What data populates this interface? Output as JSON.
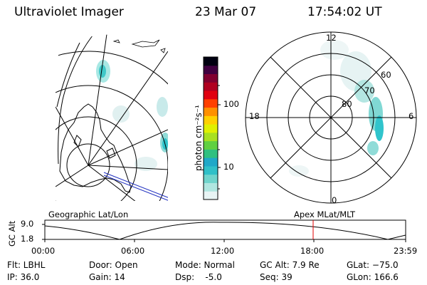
{
  "header": {
    "instrument": "Ultraviolet Imager",
    "date": "23 Mar 07",
    "time": "17:54:02 UT"
  },
  "colorbar": {
    "label": "photon cm⁻²s⁻¹",
    "ticks": [
      "100",
      "10"
    ],
    "colors": [
      "#e8f4f4",
      "#b0e6e0",
      "#70d4cc",
      "#30c0c8",
      "#20a8c8",
      "#30c080",
      "#60d040",
      "#a8e020",
      "#e0f000",
      "#ffd000",
      "#ff9000",
      "#ff4000",
      "#e00010",
      "#b00020",
      "#800030",
      "#400040",
      "#000010"
    ]
  },
  "polar": {
    "labels": {
      "top": "12",
      "left": "18",
      "right": "6",
      "bottom": "0"
    },
    "lat_labels": [
      "60",
      "70",
      "80"
    ]
  },
  "footer": {
    "left_title": "Geographic Lat/Lon",
    "right_title": "Apex MLat/MLT",
    "axis_label": "GC Alt",
    "y_ticks": [
      "9.0",
      "1.8"
    ],
    "x_ticks": [
      "00:00",
      "06:00",
      "12:00",
      "18:00",
      "23:59"
    ],
    "marker_color": "#e00000"
  },
  "info": {
    "filter": "Flt: LBHL",
    "ip": "IP: 36.0",
    "door": "Door: Open",
    "gain": "Gain: 14",
    "mode": "Mode: Normal",
    "dsp": "Dsp:    -5.0",
    "gc_alt": "GC Alt: 7.9 Re",
    "seq": "Seq: 39",
    "glat": "GLat: −75.0",
    "glon": "GLon: 166.6"
  }
}
